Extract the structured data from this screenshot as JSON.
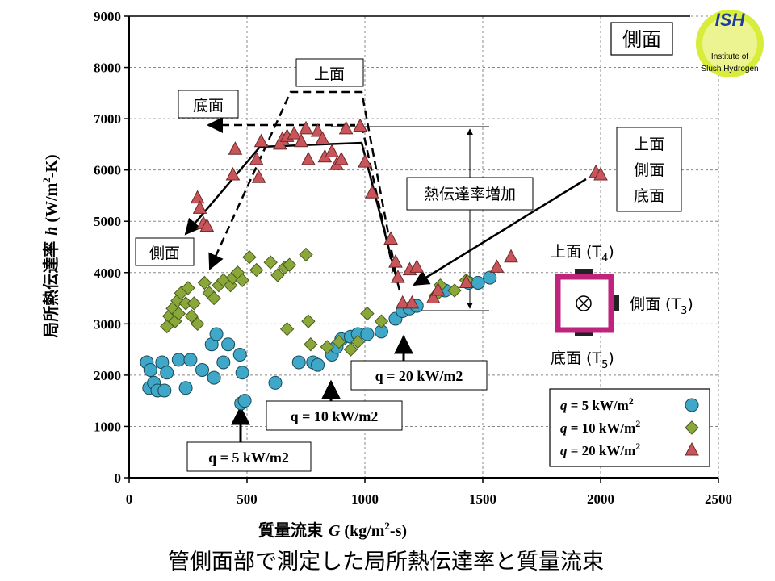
{
  "caption": "管側面部で測定した局所熱伝達率と質量流束",
  "logo": {
    "title": "ISH",
    "line1": "Institute of",
    "line2": "Slush Hydrogen"
  },
  "colors": {
    "q5": "#3fa7c7",
    "q10": "#8aa83a",
    "q20": "#c9545a",
    "sensor": "#c0237e"
  },
  "chart_data": {
    "type": "scatter",
    "title": "側面",
    "xlabel_pre": "質量流束 ",
    "xlabel_var": "G",
    "xlabel_unit": " (kg/m",
    "xlabel_sup": "2",
    "xlabel_end": "-s)",
    "ylabel_pre": "局所熱伝達率 ",
    "ylabel_var": "h",
    "ylabel_unit": " (W/m",
    "ylabel_sup": "2",
    "ylabel_end": "-K)",
    "xlim": [
      0,
      2500
    ],
    "ylim": [
      0,
      9000
    ],
    "xticks": [
      0,
      500,
      1000,
      1500,
      2000,
      2500
    ],
    "yticks": [
      0,
      1000,
      2000,
      3000,
      4000,
      5000,
      6000,
      7000,
      8000,
      9000
    ],
    "grid": true,
    "legend_position": "bottom-right",
    "series": [
      {
        "name": "q = 5 kW/m2",
        "legend_var": "q",
        "legend_text": " =   5 kW/m",
        "marker": "circle",
        "points": [
          [
            75,
            2250
          ],
          [
            90,
            2100
          ],
          [
            85,
            1750
          ],
          [
            105,
            1850
          ],
          [
            120,
            1700
          ],
          [
            140,
            2250
          ],
          [
            150,
            1700
          ],
          [
            160,
            2050
          ],
          [
            210,
            2300
          ],
          [
            240,
            1750
          ],
          [
            260,
            2300
          ],
          [
            310,
            2100
          ],
          [
            350,
            2600
          ],
          [
            370,
            2800
          ],
          [
            360,
            1950
          ],
          [
            400,
            2250
          ],
          [
            420,
            2600
          ],
          [
            470,
            2400
          ],
          [
            480,
            2050
          ],
          [
            475,
            1450
          ],
          [
            490,
            1500
          ],
          [
            620,
            1850
          ],
          [
            720,
            2250
          ],
          [
            780,
            2250
          ],
          [
            800,
            2200
          ],
          [
            860,
            2400
          ],
          [
            880,
            2550
          ],
          [
            900,
            2700
          ],
          [
            940,
            2750
          ],
          [
            970,
            2800
          ],
          [
            1010,
            2800
          ],
          [
            1070,
            2850
          ],
          [
            1130,
            3100
          ],
          [
            1160,
            3250
          ],
          [
            1190,
            3300
          ],
          [
            1220,
            3350
          ],
          [
            1340,
            3650
          ],
          [
            1440,
            3800
          ],
          [
            1480,
            3800
          ],
          [
            1530,
            3900
          ]
        ]
      },
      {
        "name": "q = 10 kW/m2",
        "legend_var": "q",
        "legend_text": " = 10 kW/m",
        "marker": "diamond",
        "points": [
          [
            160,
            2950
          ],
          [
            170,
            3150
          ],
          [
            185,
            3300
          ],
          [
            195,
            3050
          ],
          [
            205,
            3450
          ],
          [
            210,
            3200
          ],
          [
            220,
            3600
          ],
          [
            240,
            3400
          ],
          [
            250,
            3700
          ],
          [
            265,
            3150
          ],
          [
            275,
            3400
          ],
          [
            290,
            3000
          ],
          [
            320,
            3800
          ],
          [
            340,
            3600
          ],
          [
            360,
            3500
          ],
          [
            380,
            3750
          ],
          [
            400,
            3850
          ],
          [
            430,
            3750
          ],
          [
            440,
            3900
          ],
          [
            460,
            4000
          ],
          [
            480,
            3850
          ],
          [
            510,
            4300
          ],
          [
            540,
            4050
          ],
          [
            600,
            4200
          ],
          [
            630,
            3950
          ],
          [
            660,
            4100
          ],
          [
            680,
            4150
          ],
          [
            750,
            4350
          ],
          [
            760,
            3050
          ],
          [
            670,
            2900
          ],
          [
            770,
            2600
          ],
          [
            840,
            2550
          ],
          [
            890,
            2650
          ],
          [
            940,
            2500
          ],
          [
            970,
            2650
          ],
          [
            1010,
            3200
          ],
          [
            1070,
            3050
          ],
          [
            1300,
            3550
          ],
          [
            1320,
            3750
          ],
          [
            1380,
            3650
          ],
          [
            1430,
            3850
          ]
        ]
      },
      {
        "name": "q = 20 kW/m2",
        "legend_var": "q",
        "legend_text": " = 20 kW/m",
        "marker": "triangle",
        "points": [
          [
            290,
            5450
          ],
          [
            300,
            5250
          ],
          [
            315,
            4950
          ],
          [
            330,
            4900
          ],
          [
            450,
            6400
          ],
          [
            440,
            5900
          ],
          [
            540,
            6200
          ],
          [
            550,
            5850
          ],
          [
            560,
            6550
          ],
          [
            640,
            6500
          ],
          [
            650,
            6600
          ],
          [
            670,
            6650
          ],
          [
            700,
            6700
          ],
          [
            730,
            6550
          ],
          [
            750,
            6800
          ],
          [
            760,
            6200
          ],
          [
            800,
            6750
          ],
          [
            820,
            6600
          ],
          [
            830,
            6250
          ],
          [
            860,
            6350
          ],
          [
            880,
            6100
          ],
          [
            900,
            6200
          ],
          [
            920,
            6800
          ],
          [
            980,
            6850
          ],
          [
            1000,
            6150
          ],
          [
            1030,
            5550
          ],
          [
            1110,
            4650
          ],
          [
            1130,
            4200
          ],
          [
            1140,
            3900
          ],
          [
            1160,
            3400
          ],
          [
            1200,
            3400
          ],
          [
            1190,
            4050
          ],
          [
            1220,
            4100
          ],
          [
            1290,
            3500
          ],
          [
            1310,
            3650
          ],
          [
            1430,
            3800
          ],
          [
            1560,
            4100
          ],
          [
            1620,
            4300
          ],
          [
            1980,
            5950
          ],
          [
            2000,
            5900
          ]
        ]
      }
    ],
    "annotations": {
      "top": "上面",
      "bottom": "底面",
      "side": "側面",
      "multi": [
        "上面",
        "側面",
        "底面"
      ],
      "increase": "熱伝達率増加",
      "q5": "q = 5 kW/m2",
      "q10": "q = 10 kW/m2",
      "q20": "q = 20 kW/m2"
    },
    "sensor_labels": {
      "top_pre": "上面 (T",
      "top_sub": "4",
      "top_post": ")",
      "side_pre": "側面 (T",
      "side_sub": "3",
      "side_post": ")",
      "bottom_pre": "底面 (T",
      "bottom_sub": "5",
      "bottom_post": ")"
    }
  }
}
